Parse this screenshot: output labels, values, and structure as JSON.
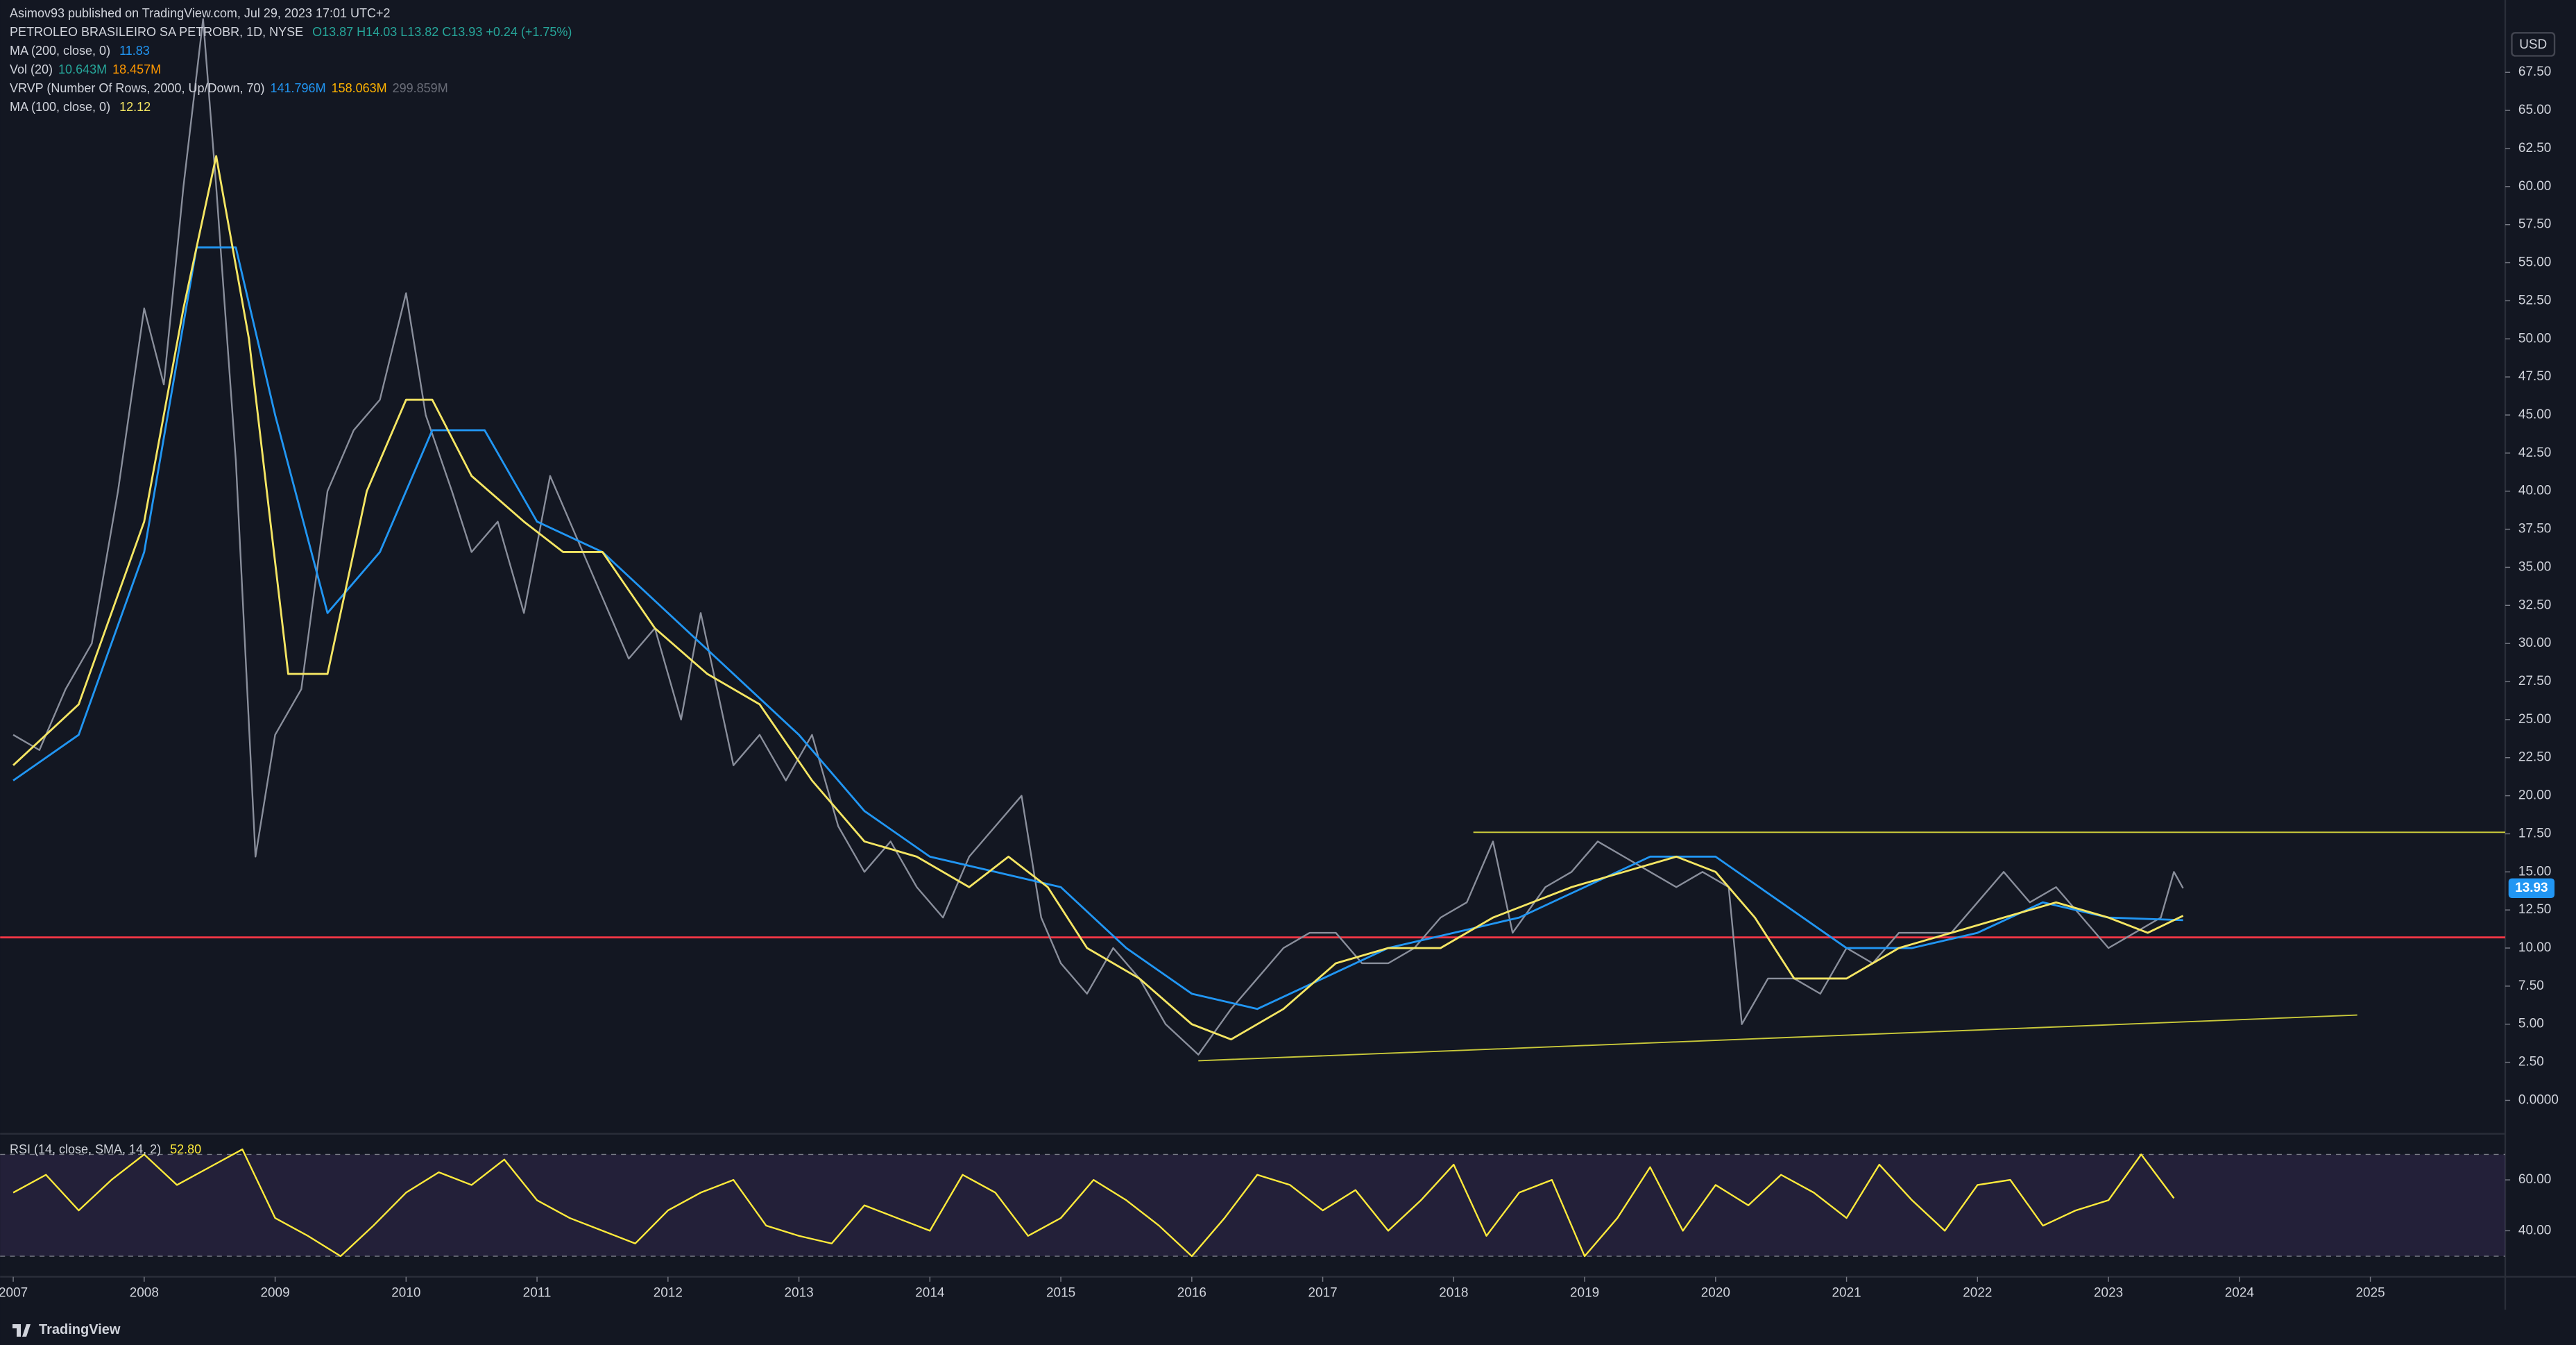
{
  "publisher": "Asimov93 published on TradingView.com, Jul 29, 2023 17:01 UTC+2",
  "brand": "TradingView",
  "currency": "USD",
  "chart_data": [
    {
      "type": "line",
      "title": "PETROLEO BRASILEIRO SA PETROBR, 1D, NYSE",
      "ohlc": "O13.87 H14.03 L13.82 C13.93 +0.24 (+1.75%)",
      "studies": [
        {
          "name": "Vol (20)",
          "readings": [
            "10.643M",
            "18.457M"
          ],
          "colors": [
            "#26a69a",
            "#ff9800"
          ]
        },
        {
          "name": "VRVP (Number Of Rows, 2000, Up/Down, 70)",
          "readings": [
            "141.796M",
            "158.063M",
            "299.859M"
          ],
          "colors": [
            "#2196f3",
            "#ffb300",
            "#6a6d78"
          ]
        }
      ],
      "xlim": [
        2006.9,
        2026.03
      ],
      "xticks": [
        2007,
        2008,
        2009,
        2010,
        2011,
        2012,
        2013,
        2014,
        2015,
        2016,
        2017,
        2018,
        2019,
        2020,
        2021,
        2022,
        2023,
        2024,
        2025
      ],
      "ylim": [
        -2.2,
        72.25
      ],
      "yticks": [
        {
          "value": 0,
          "label": "0.0000"
        },
        {
          "value": 2.5,
          "label": "2.50"
        },
        {
          "value": 5,
          "label": "5.00"
        },
        {
          "value": 7.5,
          "label": "7.50"
        },
        {
          "value": 10,
          "label": "10.00"
        },
        {
          "value": 12.5,
          "label": "12.50"
        },
        {
          "value": 15,
          "label": "15.00"
        },
        {
          "value": 17.5,
          "label": "17.50"
        },
        {
          "value": 20,
          "label": "20.00"
        },
        {
          "value": 22.5,
          "label": "22.50"
        },
        {
          "value": 25,
          "label": "25.00"
        },
        {
          "value": 27.5,
          "label": "27.50"
        },
        {
          "value": 30,
          "label": "30.00"
        },
        {
          "value": 32.5,
          "label": "32.50"
        },
        {
          "value": 35,
          "label": "35.00"
        },
        {
          "value": 37.5,
          "label": "37.50"
        },
        {
          "value": 40,
          "label": "40.00"
        },
        {
          "value": 42.5,
          "label": "42.50"
        },
        {
          "value": 45,
          "label": "45.00"
        },
        {
          "value": 47.5,
          "label": "47.50"
        },
        {
          "value": 50,
          "label": "50.00"
        },
        {
          "value": 52.5,
          "label": "52.50"
        },
        {
          "value": 55,
          "label": "55.00"
        },
        {
          "value": 57.5,
          "label": "57.50"
        },
        {
          "value": 60,
          "label": "60.00"
        },
        {
          "value": 62.5,
          "label": "62.50"
        },
        {
          "value": 65,
          "label": "65.00"
        },
        {
          "value": 67.5,
          "label": "67.50"
        }
      ],
      "grid": false,
      "last": 13.93,
      "last_color": "#2196f3",
      "series": [
        {
          "name": "PETROLEO BRASILEIRO SA PETROBR",
          "color": "#8a8f9c",
          "x": [
            2007,
            2007.2,
            2007.4,
            2007.6,
            2007.8,
            2008.0,
            2008.15,
            2008.3,
            2008.45,
            2008.55,
            2008.7,
            2008.85,
            2009.0,
            2009.2,
            2009.4,
            2009.6,
            2009.8,
            2010.0,
            2010.15,
            2010.35,
            2010.5,
            2010.7,
            2010.9,
            2011.1,
            2011.3,
            2011.5,
            2011.7,
            2011.9,
            2012.1,
            2012.25,
            2012.5,
            2012.7,
            2012.9,
            2013.1,
            2013.3,
            2013.5,
            2013.7,
            2013.9,
            2014.1,
            2014.3,
            2014.5,
            2014.7,
            2014.85,
            2015.0,
            2015.2,
            2015.4,
            2015.6,
            2015.8,
            2016.05,
            2016.3,
            2016.5,
            2016.7,
            2016.9,
            2017.1,
            2017.3,
            2017.5,
            2017.7,
            2017.9,
            2018.1,
            2018.3,
            2018.45,
            2018.7,
            2018.9,
            2019.1,
            2019.3,
            2019.5,
            2019.7,
            2019.9,
            2020.1,
            2020.2,
            2020.4,
            2020.6,
            2020.8,
            2021.0,
            2021.2,
            2021.4,
            2021.6,
            2021.8,
            2022.0,
            2022.2,
            2022.4,
            2022.6,
            2022.8,
            2023.0,
            2023.2,
            2023.4,
            2023.5,
            2023.57
          ],
          "values": [
            24,
            23,
            27,
            30,
            40,
            52,
            47,
            60,
            71,
            60,
            42,
            16,
            24,
            27,
            40,
            44,
            46,
            53,
            45,
            40,
            36,
            38,
            32,
            41,
            37,
            33,
            29,
            31,
            25,
            32,
            22,
            24,
            21,
            24,
            18,
            15,
            17,
            14,
            12,
            16,
            18,
            20,
            12,
            9,
            7,
            10,
            8,
            5,
            3,
            6,
            8,
            10,
            11,
            11,
            9,
            9,
            10,
            12,
            13,
            17,
            11,
            14,
            15,
            17,
            16,
            15,
            14,
            15,
            14,
            5,
            8,
            8,
            7,
            10,
            9,
            11,
            11,
            11,
            13,
            15,
            13,
            14,
            12,
            10,
            11,
            12,
            15,
            13.93
          ]
        },
        {
          "name": "MA (200, close, 0)",
          "reading": "11.83",
          "color": "#2196f3",
          "x": [
            2007,
            2007.5,
            2008,
            2008.4,
            2008.7,
            2009.0,
            2009.4,
            2009.8,
            2010.2,
            2010.6,
            2011.0,
            2011.5,
            2012.0,
            2012.5,
            2013.0,
            2013.5,
            2014.0,
            2014.5,
            2015.0,
            2015.5,
            2016.0,
            2016.5,
            2017.0,
            2017.5,
            2018.0,
            2018.5,
            2019.0,
            2019.5,
            2020.0,
            2020.5,
            2021.0,
            2021.5,
            2022.0,
            2022.5,
            2023.0,
            2023.57
          ],
          "values": [
            21,
            24,
            36,
            56,
            56,
            45,
            32,
            36,
            44,
            44,
            38,
            36,
            32,
            28,
            24,
            19,
            16,
            15,
            14,
            10,
            7,
            6,
            8,
            10,
            11,
            12,
            14,
            16,
            16,
            13,
            10,
            10,
            11,
            13,
            12,
            11.83
          ]
        },
        {
          "name": "MA (100, close, 0)",
          "reading": "12.12",
          "color": "#f5e663",
          "x": [
            2007,
            2007.5,
            2008,
            2008.3,
            2008.55,
            2008.8,
            2009.1,
            2009.4,
            2009.7,
            2010.0,
            2010.2,
            2010.5,
            2010.9,
            2011.2,
            2011.5,
            2011.9,
            2012.3,
            2012.7,
            2013.1,
            2013.5,
            2013.9,
            2014.3,
            2014.6,
            2014.9,
            2015.2,
            2015.6,
            2016.0,
            2016.3,
            2016.7,
            2017.1,
            2017.5,
            2017.9,
            2018.3,
            2018.6,
            2018.9,
            2019.3,
            2019.7,
            2020.0,
            2020.3,
            2020.6,
            2021.0,
            2021.4,
            2021.8,
            2022.2,
            2022.6,
            2023.0,
            2023.3,
            2023.57
          ],
          "values": [
            22,
            26,
            38,
            52,
            62,
            50,
            28,
            28,
            40,
            46,
            46,
            41,
            38,
            36,
            36,
            31,
            28,
            26,
            21,
            17,
            16,
            14,
            16,
            14,
            10,
            8,
            5,
            4,
            6,
            9,
            10,
            10,
            12,
            13,
            14,
            15,
            16,
            15,
            12,
            8,
            8,
            10,
            11,
            12,
            13,
            12,
            11,
            12.12
          ]
        }
      ],
      "levels": [
        {
          "value": 10.7,
          "color": "#f23645"
        }
      ],
      "trendlines": [
        {
          "color": "#c9c93a",
          "x": [
            2018.15,
            2026.03
          ],
          "values": [
            17.6,
            17.6
          ]
        },
        {
          "color": "#c9c93a",
          "x": [
            2016.05,
            2024.9
          ],
          "values": [
            2.6,
            5.6
          ]
        }
      ]
    },
    {
      "type": "line",
      "title": "RSI (14, close, SMA, 14, 2)",
      "reading": "52.80",
      "ylim": [
        21.9,
        78.1
      ],
      "yticks": [
        {
          "value": 40,
          "label": "40.00"
        },
        {
          "value": 60,
          "label": "60.00"
        }
      ],
      "bands": [
        30,
        70
      ],
      "series": [
        {
          "name": "RSI",
          "color": "#ffeb3b",
          "x": [
            2007,
            2007.25,
            2007.5,
            2007.75,
            2008,
            2008.25,
            2008.5,
            2008.75,
            2009,
            2009.25,
            2009.5,
            2009.75,
            2010,
            2010.25,
            2010.5,
            2010.75,
            2011,
            2011.25,
            2011.5,
            2011.75,
            2012,
            2012.25,
            2012.5,
            2012.75,
            2013,
            2013.25,
            2013.5,
            2013.75,
            2014,
            2014.25,
            2014.5,
            2014.75,
            2015,
            2015.25,
            2015.5,
            2015.75,
            2016,
            2016.25,
            2016.5,
            2016.75,
            2017,
            2017.25,
            2017.5,
            2017.75,
            2018,
            2018.25,
            2018.5,
            2018.75,
            2019,
            2019.25,
            2019.5,
            2019.75,
            2020,
            2020.25,
            2020.5,
            2020.75,
            2021,
            2021.25,
            2021.5,
            2021.75,
            2022,
            2022.25,
            2022.5,
            2022.75,
            2023,
            2023.25,
            2023.5
          ],
          "values": [
            55,
            62,
            48,
            60,
            70,
            58,
            65,
            72,
            45,
            38,
            30,
            42,
            55,
            63,
            58,
            68,
            52,
            45,
            40,
            35,
            48,
            55,
            60,
            42,
            38,
            35,
            50,
            45,
            40,
            62,
            55,
            38,
            45,
            60,
            52,
            42,
            30,
            45,
            62,
            58,
            48,
            56,
            40,
            52,
            66,
            38,
            55,
            60,
            30,
            45,
            65,
            40,
            58,
            50,
            62,
            55,
            45,
            66,
            52,
            40,
            58,
            60,
            42,
            48,
            52,
            70,
            52.8
          ]
        }
      ]
    }
  ]
}
